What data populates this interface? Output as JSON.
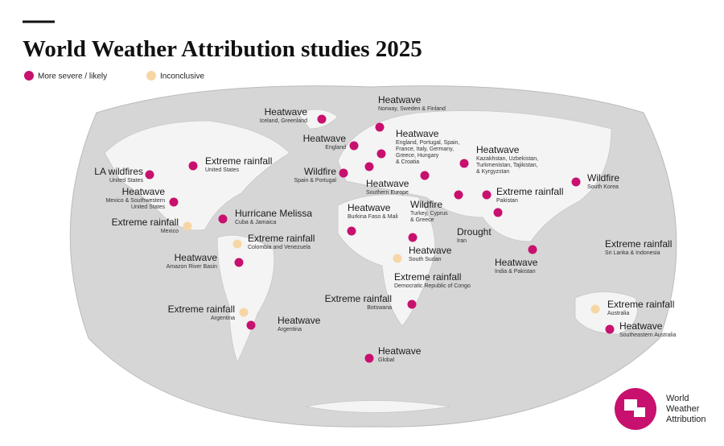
{
  "header": {
    "title": "World Weather Attribution studies 2025"
  },
  "legend": [
    {
      "label": "More severe / likely",
      "color": "#c8106e",
      "studies": [
        {
          "title": "Heatwave",
          "region": [
            "Iceland, Greenland"
          ]
        },
        {
          "title": "Heatwave",
          "region": [
            "Norway, Sweden & Finland"
          ]
        },
        {
          "title": "Heatwave",
          "region": [
            "England"
          ]
        },
        {
          "title": "Heatwave",
          "region": [
            "England, Portugal, Spain,",
            "France, Italy, Germany,",
            "Greece, Hungary",
            "& Croatia"
          ]
        },
        {
          "title": "Heatwave",
          "region": [
            "Kazakhstan, Uzbekistan,",
            "Turkmenistan, Tajikistan,",
            "& Kyrgyzstan"
          ]
        },
        {
          "title": "Extreme rainfall",
          "region": [
            "United States"
          ]
        },
        {
          "title": "LA wildfires",
          "region": [
            "United States"
          ]
        },
        {
          "title": "Wildfire",
          "region": [
            "Spain & Portugal"
          ]
        },
        {
          "title": "Heatwave",
          "region": [
            "Southern Europe"
          ]
        },
        {
          "title": "Wildfire",
          "region": [
            "South Korea"
          ]
        },
        {
          "title": "Heatwave",
          "region": [
            "Mexico & Southwestern",
            "United States"
          ]
        },
        {
          "title": "Extreme rainfall",
          "region": [
            "Pakistan"
          ]
        },
        {
          "title": "Wildfire",
          "region": [
            "Turkey, Cyprus",
            "& Greece"
          ]
        },
        {
          "title": "Hurricane Melissa",
          "region": [
            "Cuba & Jamaica"
          ]
        },
        {
          "title": "Drought",
          "region": [
            "Iran"
          ]
        },
        {
          "title": "Heatwave",
          "region": [
            "Burkina Faso & Mali"
          ]
        },
        {
          "title": "Heatwave",
          "region": [
            "India & Pakistan"
          ]
        },
        {
          "title": "Extreme rainfall",
          "region": [
            "Sri Lanka & Indonesia"
          ]
        },
        {
          "title": "Heatwave",
          "region": [
            "Amazon River Basin"
          ]
        },
        {
          "title": "Extreme rainfall",
          "region": [
            "Botswana"
          ]
        },
        {
          "title": "Heatwave",
          "region": [
            "Argentina"
          ]
        },
        {
          "title": "Heatwave",
          "region": [
            "Southeastern Australia"
          ]
        },
        {
          "title": "Heatwave",
          "region": [
            "Global"
          ]
        },
        {
          "title": "Extreme rainfall",
          "region": [
            "Democratic Republic of Congo"
          ]
        }
      ]
    },
    {
      "label": "Inconclusive",
      "color": "#f6d7a4",
      "studies": [
        {
          "title": "Extreme rainfall",
          "region": [
            "Mexico"
          ]
        },
        {
          "title": "Extreme rainfall",
          "region": [
            "Colombia and Venezuela"
          ]
        },
        {
          "title": "Heatwave",
          "region": [
            "South Sudan"
          ]
        },
        {
          "title": "Extreme rainfall",
          "region": [
            "Argentina"
          ]
        },
        {
          "title": "Extreme rainfall",
          "region": [
            "Australia"
          ]
        }
      ]
    }
  ],
  "logo": {
    "lines": [
      "World",
      "Weather",
      "Attribution"
    ]
  }
}
